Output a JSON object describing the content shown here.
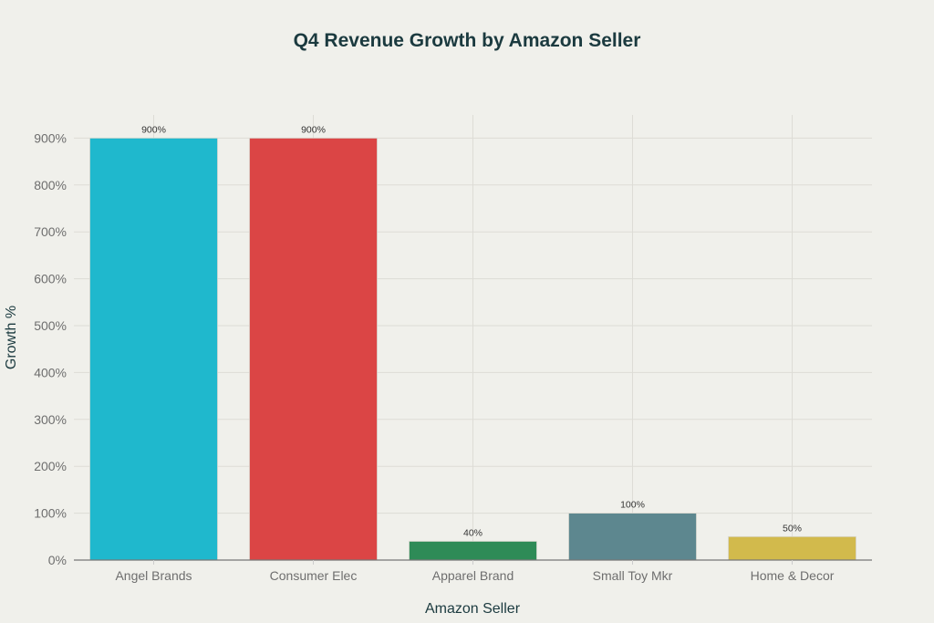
{
  "chart_data": {
    "type": "bar",
    "title": "Q4 Revenue Growth by Amazon Seller",
    "xlabel": "Amazon Seller",
    "ylabel": "Growth %",
    "categories": [
      "Angel Brands",
      "Consumer Elec",
      "Apparel Brand",
      "Small Toy Mkr",
      "Home & Decor"
    ],
    "values": [
      900,
      900,
      40,
      100,
      50
    ],
    "data_labels": [
      "900%",
      "900%",
      "40%",
      "100%",
      "50%"
    ],
    "colors": [
      "#1fb8cd",
      "#db4545",
      "#2e8b57",
      "#5d878f",
      "#d2ba4c"
    ],
    "ylim": [
      0,
      950
    ],
    "yticks": [
      0,
      100,
      200,
      300,
      400,
      500,
      600,
      700,
      800,
      900
    ],
    "ytick_labels": [
      "0%",
      "100%",
      "200%",
      "300%",
      "400%",
      "500%",
      "600%",
      "700%",
      "800%",
      "900%"
    ],
    "grid": true,
    "legend": "none"
  }
}
